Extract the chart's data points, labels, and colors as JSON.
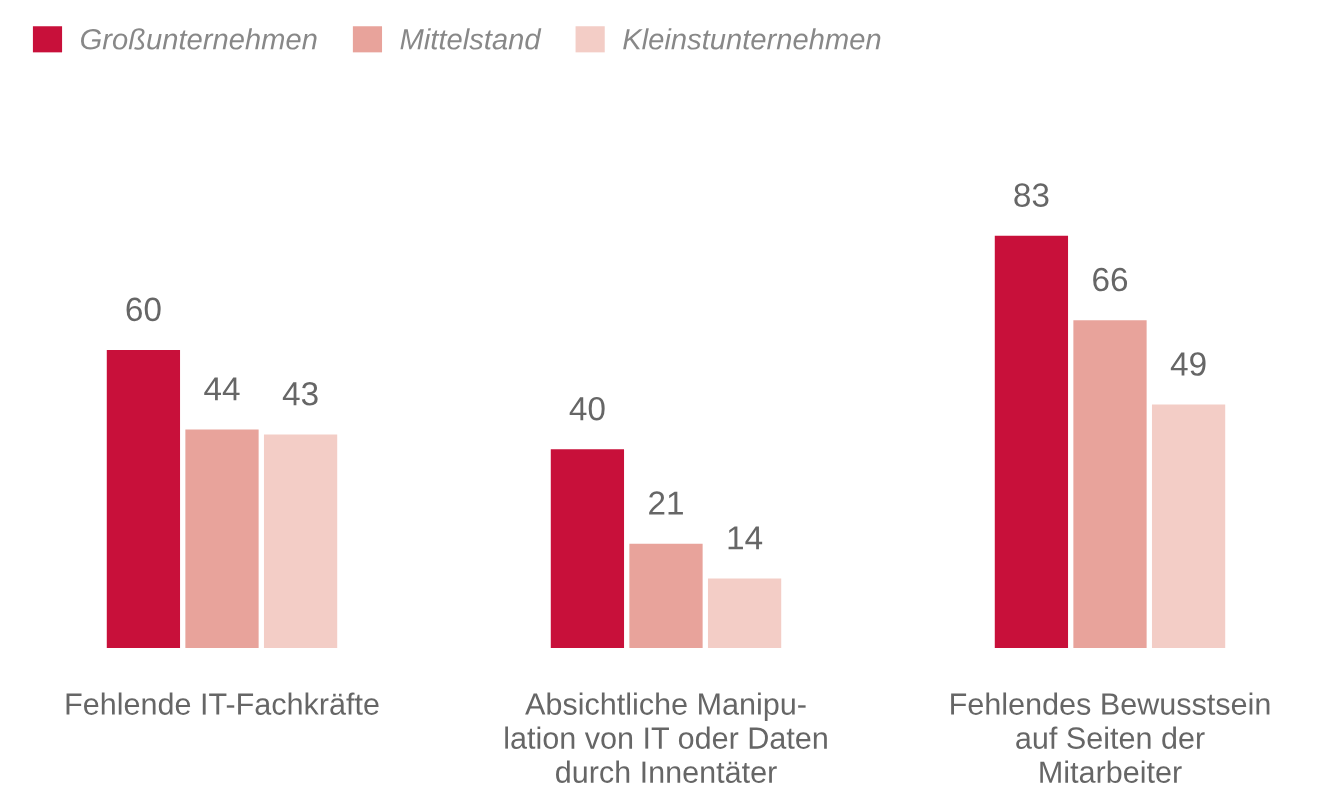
{
  "chart_data": {
    "type": "bar",
    "categories": [
      "Fehlende IT-Fachkräfte",
      "Absichtliche Manipu-\nlation von IT oder Daten\ndurch Innentäter",
      "Fehlendes Bewusstsein\nauf Seiten der\nMitarbeiter"
    ],
    "series": [
      {
        "name": "Großunternehmen",
        "color": "#c8103a",
        "values": [
          60,
          40,
          83
        ]
      },
      {
        "name": "Mittelstand",
        "color": "#e8a39b",
        "values": [
          44,
          21,
          66
        ]
      },
      {
        "name": "Kleinstunternehmen",
        "color": "#f3cdc6",
        "values": [
          43,
          14,
          49
        ]
      }
    ],
    "data_labels": true,
    "legend": "top left",
    "grid": false
  }
}
